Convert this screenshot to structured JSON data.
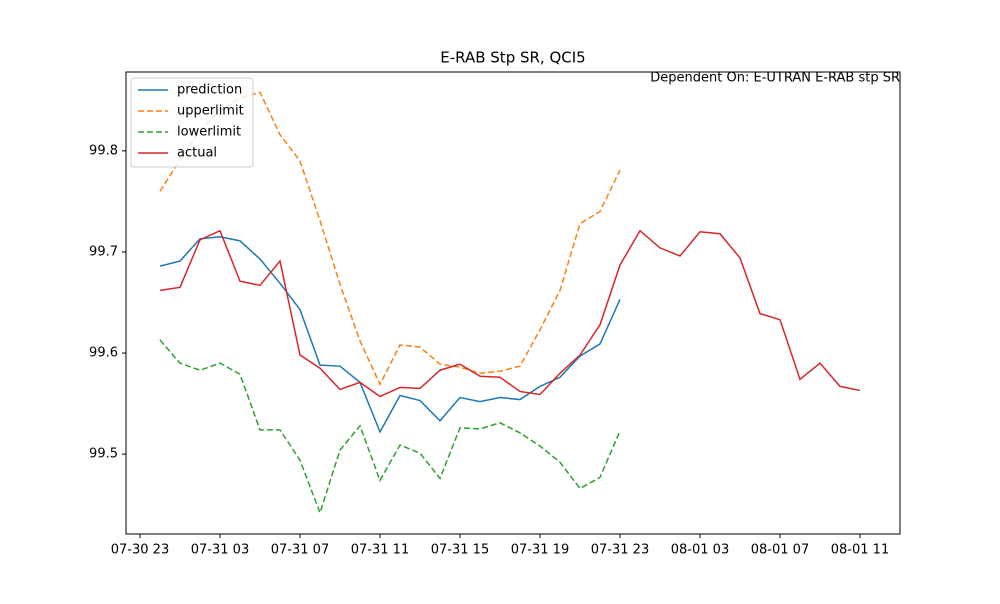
{
  "chart_data": {
    "type": "line",
    "title": "E-RAB Stp SR, QCI5",
    "annotation": "Dependent On: E-UTRAN E-RAB stp SR",
    "x": [
      "07-31 00",
      "07-31 01",
      "07-31 02",
      "07-31 03",
      "07-31 04",
      "07-31 05",
      "07-31 06",
      "07-31 07",
      "07-31 08",
      "07-31 09",
      "07-31 10",
      "07-31 11",
      "07-31 12",
      "07-31 13",
      "07-31 14",
      "07-31 15",
      "07-31 16",
      "07-31 17",
      "07-31 18",
      "07-31 19",
      "07-31 20",
      "07-31 21",
      "07-31 22",
      "07-31 23",
      "08-01 00",
      "08-01 01",
      "08-01 02",
      "08-01 03",
      "08-01 04",
      "08-01 05",
      "08-01 06",
      "08-01 07",
      "08-01 08",
      "08-01 09",
      "08-01 10",
      "08-01 11"
    ],
    "series": [
      {
        "name": "prediction",
        "color": "#1f77b4",
        "linestyle": "solid",
        "values": [
          99.686,
          99.691,
          99.713,
          99.715,
          99.711,
          99.693,
          99.669,
          99.643,
          99.588,
          99.587,
          99.571,
          99.522,
          99.558,
          99.553,
          99.533,
          99.556,
          99.552,
          99.556,
          99.554,
          99.567,
          99.576,
          99.597,
          99.609,
          99.653,
          null,
          null,
          null,
          null,
          null,
          null,
          null,
          null,
          null,
          null,
          null,
          null
        ]
      },
      {
        "name": "upperlimit",
        "color": "#ff7f0e",
        "linestyle": "dashed",
        "values": [
          99.76,
          99.791,
          99.82,
          99.84,
          99.852,
          99.858,
          99.816,
          99.79,
          99.731,
          99.668,
          99.612,
          99.569,
          99.608,
          99.606,
          99.589,
          99.586,
          99.58,
          99.582,
          99.587,
          99.623,
          99.662,
          99.728,
          99.74,
          99.781,
          null,
          null,
          null,
          null,
          null,
          null,
          null,
          null,
          null,
          null,
          null,
          null
        ]
      },
      {
        "name": "lowerlimit",
        "color": "#2ca02c",
        "linestyle": "dashed",
        "values": [
          99.613,
          99.59,
          99.583,
          99.59,
          99.579,
          99.524,
          99.524,
          99.494,
          99.442,
          99.504,
          99.528,
          99.474,
          99.509,
          99.501,
          99.476,
          99.526,
          99.525,
          99.531,
          99.521,
          99.508,
          99.492,
          99.466,
          99.477,
          99.523,
          null,
          null,
          null,
          null,
          null,
          null,
          null,
          null,
          null,
          null,
          null,
          null
        ]
      },
      {
        "name": "actual",
        "color": "#d62728",
        "linestyle": "solid",
        "values": [
          99.662,
          99.665,
          99.712,
          99.721,
          99.671,
          99.667,
          99.691,
          99.598,
          99.585,
          99.564,
          99.571,
          99.557,
          99.566,
          99.565,
          99.583,
          99.589,
          99.577,
          99.576,
          99.562,
          99.559,
          99.58,
          99.598,
          99.628,
          99.687,
          99.721,
          99.704,
          99.696,
          99.72,
          99.718,
          99.694,
          99.639,
          99.633,
          99.574,
          99.59,
          99.567,
          99.563
        ]
      }
    ],
    "xlim": [
      "07-30 22:18",
      "08-01 13:00"
    ],
    "xticks": [
      "07-30 23",
      "07-31 03",
      "07-31 07",
      "07-31 11",
      "07-31 15",
      "07-31 19",
      "07-31 23",
      "08-01 03",
      "08-01 07",
      "08-01 11"
    ],
    "ylim": [
      99.421,
      99.878
    ],
    "yticks": [
      99.5,
      99.6,
      99.7,
      99.8
    ],
    "grid": false,
    "legend": "upper left"
  }
}
